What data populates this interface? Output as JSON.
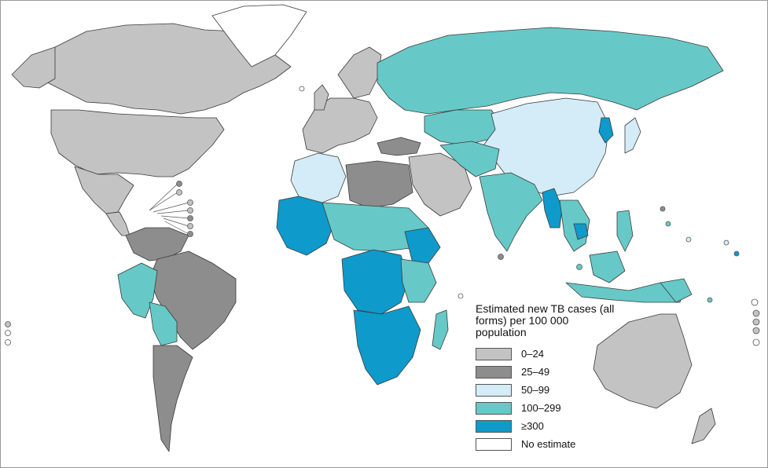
{
  "legend": {
    "title": "Estimated new TB cases (all forms) per 100 000 population",
    "items": [
      {
        "label": "0–24",
        "color": "#c3c3c3"
      },
      {
        "label": "25–49",
        "color": "#8d8d8d"
      },
      {
        "label": "50–99",
        "color": "#d3ecf7"
      },
      {
        "label": "100–299",
        "color": "#66c9c7"
      },
      {
        "label": "≥300",
        "color": "#0e9acb"
      },
      {
        "label": "No estimate",
        "color": "#ffffff"
      }
    ]
  },
  "colors": {
    "water": "#ffffff",
    "border": "#3a3a3a"
  }
}
